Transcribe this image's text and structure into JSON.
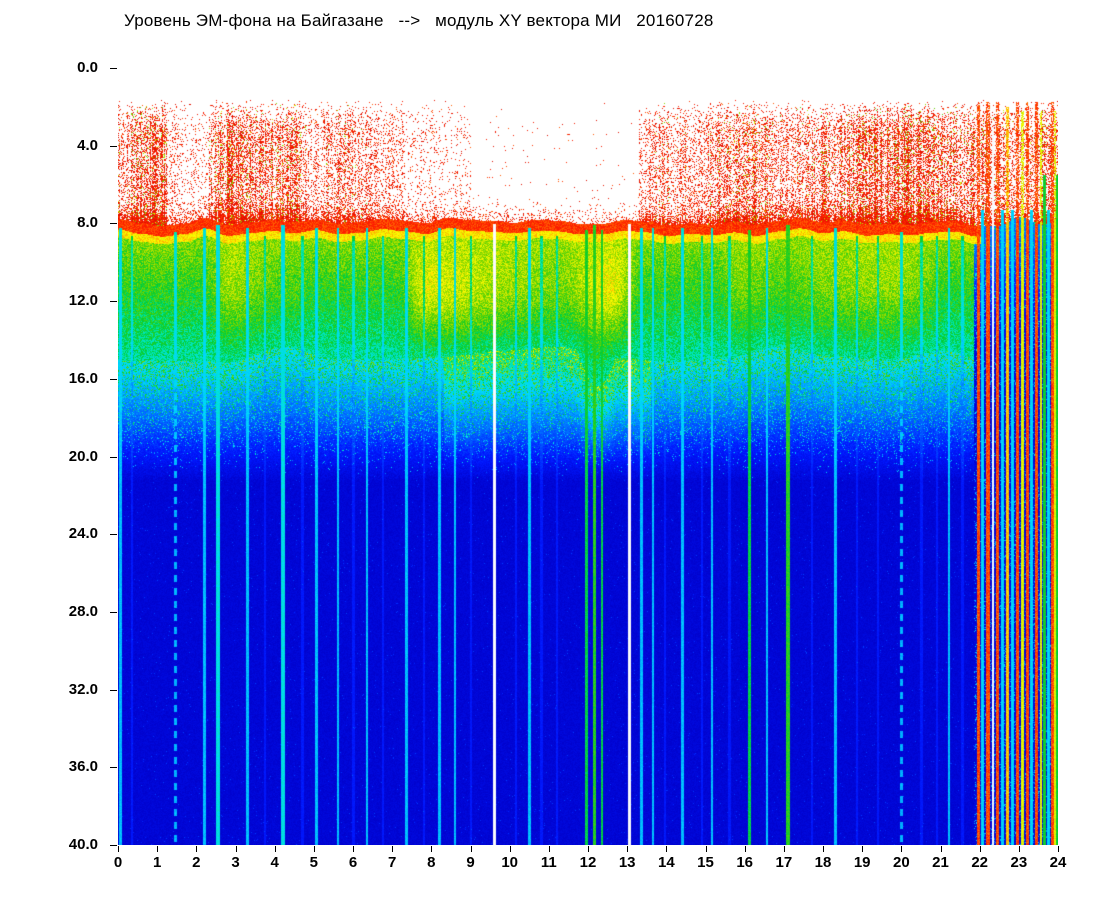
{
  "chart_data": {
    "type": "heatmap",
    "title": "Уровень ЭМ-фона на Байгазане   -->   модуль XY вектора МИ   20160728",
    "x_axis": {
      "min": 0,
      "max": 24,
      "tick_labels": [
        "0",
        "1",
        "2",
        "3",
        "4",
        "5",
        "6",
        "7",
        "8",
        "9",
        "10",
        "11",
        "12",
        "13",
        "14",
        "15",
        "16",
        "17",
        "18",
        "19",
        "20",
        "21",
        "22",
        "23",
        "24"
      ]
    },
    "y_axis": {
      "min": 0,
      "max": 40,
      "tick_labels": [
        "0.0",
        "4.0",
        "8.0",
        "12.0",
        "16.0",
        "20.0",
        "24.0",
        "28.0",
        "32.0",
        "36.0",
        "40.0"
      ]
    },
    "background": "#ffffff",
    "text_color": "#000000",
    "colormap": "jet-like: blue -> cyan -> green -> yellow -> red",
    "colormap_stops": [
      [
        0.0,
        "#000080"
      ],
      [
        0.08,
        "#0000c8"
      ],
      [
        0.18,
        "#0018ff"
      ],
      [
        0.3,
        "#0090ff"
      ],
      [
        0.38,
        "#00d8ff"
      ],
      [
        0.46,
        "#00e8b0"
      ],
      [
        0.54,
        "#00cc33"
      ],
      [
        0.62,
        "#66d400"
      ],
      [
        0.7,
        "#c8e600"
      ],
      [
        0.76,
        "#ffff00"
      ],
      [
        0.82,
        "#ffa000"
      ],
      [
        0.88,
        "#ff1e00"
      ],
      [
        1.0,
        "#b40000"
      ]
    ],
    "bands": [
      {
        "y_range": [
          0,
          8
        ],
        "appearance": "white background with red impulsive-noise speckles, density varying with time of day"
      },
      {
        "y_range": [
          8,
          8.6
        ],
        "appearance": "solid red band across all hours"
      },
      {
        "y_range": [
          8.6,
          14.8
        ],
        "appearance": "mottled green band with yellow patches (strongest 07h-13h)"
      },
      {
        "y_range": [
          14.8,
          21
        ],
        "appearance": "cyan speckle fading into blue"
      },
      {
        "y_range": [
          21,
          40
        ],
        "appearance": "uniform deep blue"
      }
    ],
    "speckle_envelope": [
      [
        0.0,
        1.25,
        0.5
      ],
      [
        1.25,
        2.3,
        0.15
      ],
      [
        2.3,
        4.65,
        0.55
      ],
      [
        4.65,
        7.3,
        0.35
      ],
      [
        7.3,
        9.0,
        0.12
      ],
      [
        9.0,
        13.3,
        0.008
      ],
      [
        13.3,
        15.3,
        0.28
      ],
      [
        15.3,
        17.25,
        0.4
      ],
      [
        17.25,
        21.4,
        0.55
      ],
      [
        21.4,
        24.0,
        0.4
      ]
    ],
    "yellow_patches": [
      [
        7.2,
        13.3,
        0.16
      ],
      [
        2.2,
        5.0,
        0.07
      ],
      [
        15.3,
        21.2,
        0.07
      ]
    ],
    "band_dips": [
      [
        11.7,
        12.7,
        1.6
      ]
    ],
    "right_cluster_start": 21.85,
    "streaks": [
      [
        0.04,
        0.05,
        "cyan"
      ],
      [
        0.35,
        0.03,
        "faint"
      ],
      [
        1.45,
        0.05,
        "dashed"
      ],
      [
        2.2,
        0.04,
        "cyan"
      ],
      [
        2.55,
        0.08,
        "bright-cyan"
      ],
      [
        3.3,
        0.05,
        "cyan"
      ],
      [
        3.75,
        0.03,
        "faint"
      ],
      [
        4.2,
        0.07,
        "bright-cyan"
      ],
      [
        4.7,
        0.03,
        "faint"
      ],
      [
        5.05,
        0.04,
        "cyan"
      ],
      [
        5.6,
        0.03,
        "cyan"
      ],
      [
        6.0,
        0.03,
        "faint"
      ],
      [
        6.35,
        0.04,
        "cyan"
      ],
      [
        6.75,
        0.03,
        "faint"
      ],
      [
        7.35,
        0.04,
        "cyan"
      ],
      [
        7.8,
        0.03,
        "faint"
      ],
      [
        8.2,
        0.05,
        "cyan"
      ],
      [
        8.6,
        0.03,
        "cyan"
      ],
      [
        9.0,
        0.03,
        "faint"
      ],
      [
        9.6,
        0.06,
        "white"
      ],
      [
        10.15,
        0.03,
        "faint"
      ],
      [
        10.5,
        0.04,
        "cyan"
      ],
      [
        10.8,
        0.03,
        "faint"
      ],
      [
        11.2,
        0.03,
        "faint"
      ],
      [
        11.95,
        0.05,
        "green"
      ],
      [
        12.15,
        0.06,
        "bright-green"
      ],
      [
        12.35,
        0.04,
        "green"
      ],
      [
        13.05,
        0.07,
        "white"
      ],
      [
        13.35,
        0.04,
        "cyan"
      ],
      [
        13.65,
        0.04,
        "cyan"
      ],
      [
        13.95,
        0.03,
        "faint"
      ],
      [
        14.4,
        0.04,
        "cyan"
      ],
      [
        14.9,
        0.03,
        "faint"
      ],
      [
        15.15,
        0.04,
        "cyan"
      ],
      [
        15.6,
        0.03,
        "faint"
      ],
      [
        16.1,
        0.05,
        "green"
      ],
      [
        16.55,
        0.03,
        "cyan"
      ],
      [
        17.1,
        0.08,
        "bright-green"
      ],
      [
        17.7,
        0.03,
        "faint"
      ],
      [
        18.3,
        0.04,
        "cyan"
      ],
      [
        18.85,
        0.03,
        "faint"
      ],
      [
        19.4,
        0.03,
        "faint"
      ],
      [
        20.0,
        0.05,
        "dashed"
      ],
      [
        20.5,
        0.03,
        "faint"
      ],
      [
        20.9,
        0.03,
        "faint"
      ],
      [
        21.2,
        0.04,
        "cyan"
      ],
      [
        21.55,
        0.03,
        "faint"
      ],
      [
        21.95,
        0.06,
        "red"
      ],
      [
        22.07,
        0.05,
        "cyan-tall"
      ],
      [
        22.2,
        0.08,
        "red"
      ],
      [
        22.33,
        0.04,
        "white-tall"
      ],
      [
        22.45,
        0.06,
        "red"
      ],
      [
        22.58,
        0.05,
        "cyan-tall"
      ],
      [
        22.7,
        0.07,
        "orange"
      ],
      [
        22.83,
        0.04,
        "cyan-tall"
      ],
      [
        22.95,
        0.06,
        "red"
      ],
      [
        23.08,
        0.05,
        "yellow"
      ],
      [
        23.2,
        0.05,
        "red"
      ],
      [
        23.32,
        0.05,
        "cyan-tall"
      ],
      [
        23.44,
        0.06,
        "red"
      ],
      [
        23.55,
        0.04,
        "yellow"
      ],
      [
        23.65,
        0.05,
        "green-tall"
      ],
      [
        23.75,
        0.05,
        "cyan-tall"
      ],
      [
        23.85,
        0.06,
        "red"
      ],
      [
        23.93,
        0.04,
        "yellow"
      ],
      [
        23.98,
        0.04,
        "green-tall"
      ]
    ]
  }
}
